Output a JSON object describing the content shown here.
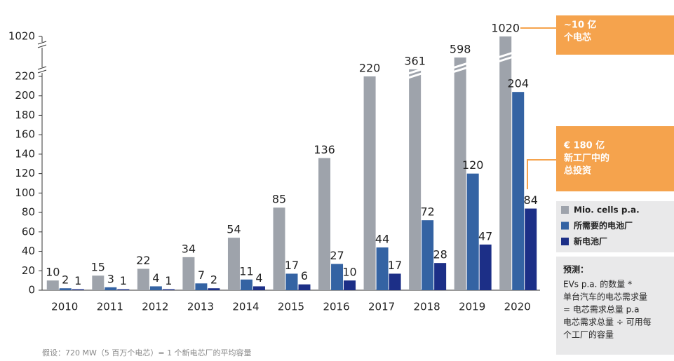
{
  "chart_data": {
    "type": "bar",
    "categories": [
      "2010",
      "2011",
      "2012",
      "2013",
      "2014",
      "2015",
      "2016",
      "2017",
      "2018",
      "2019",
      "2020"
    ],
    "series": [
      {
        "name": "Mio. cells p.a.",
        "color": "#9ea3ab",
        "values": [
          10,
          15,
          22,
          34,
          54,
          85,
          136,
          220,
          361,
          598,
          1020
        ]
      },
      {
        "name": "所需要的电池厂",
        "color": "#3463a3",
        "values": [
          2,
          3,
          4,
          7,
          11,
          17,
          27,
          44,
          72,
          120,
          204
        ]
      },
      {
        "name": "新电池厂",
        "color": "#1c2f87",
        "values": [
          1,
          1,
          1,
          2,
          4,
          6,
          10,
          17,
          28,
          47,
          84
        ]
      }
    ],
    "ylim": [
      0,
      1020
    ],
    "yticks": [
      0,
      20,
      40,
      60,
      80,
      100,
      120,
      140,
      160,
      180,
      200,
      220,
      1020
    ],
    "legend": "right",
    "annotations": [
      {
        "lines": [
          "~10 亿",
          "个电芯"
        ]
      },
      {
        "lines": [
          "€ 180 亿",
          "新工厂中的",
          "总投资"
        ]
      }
    ],
    "notes": {
      "title": "预测：",
      "lines": [
        "EVs p.a. 的数量 *",
        "单台汽车的电芯需求量",
        "= 电芯需求总量 p.a",
        "电芯需求总量 ÷ 可用每",
        "个工厂的容量"
      ]
    },
    "footnote": "假设：720 MW（5 百万个电芯）= 1 个新电芯厂的平均容量"
  }
}
